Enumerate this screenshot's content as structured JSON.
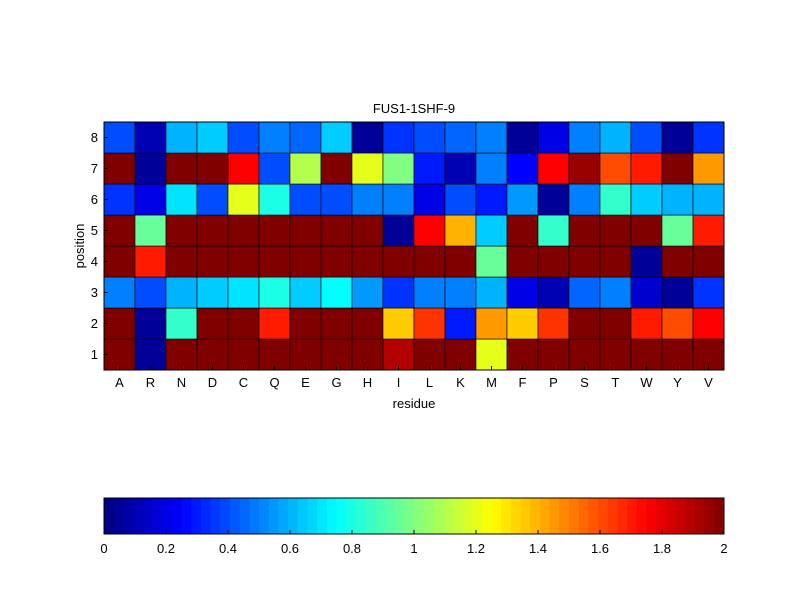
{
  "chart_data": {
    "type": "heatmap",
    "title": "FUS1-1SHF-9",
    "xlabel": "residue",
    "ylabel": "position",
    "x_categories": [
      "A",
      "R",
      "N",
      "D",
      "C",
      "Q",
      "E",
      "G",
      "H",
      "I",
      "L",
      "K",
      "M",
      "F",
      "P",
      "S",
      "T",
      "W",
      "Y",
      "V"
    ],
    "y_categories": [
      "1",
      "2",
      "3",
      "4",
      "5",
      "6",
      "7",
      "8"
    ],
    "values": [
      [
        2.0,
        0.05,
        2.0,
        2.0,
        2.0,
        2.0,
        2.0,
        2.0,
        2.0,
        1.9,
        2.0,
        2.0,
        1.2,
        2.0,
        2.0,
        2.0,
        2.0,
        2.0,
        2.0,
        2.0
      ],
      [
        2.0,
        0.05,
        0.85,
        2.0,
        2.0,
        1.7,
        2.0,
        2.0,
        2.0,
        1.35,
        1.65,
        0.3,
        1.45,
        1.35,
        1.65,
        2.0,
        2.0,
        1.7,
        1.6,
        1.75
      ],
      [
        0.5,
        0.4,
        0.6,
        0.65,
        0.7,
        0.8,
        0.65,
        0.75,
        0.55,
        0.35,
        0.5,
        0.5,
        0.6,
        0.2,
        0.1,
        0.45,
        0.5,
        0.15,
        0.05,
        0.35
      ],
      [
        2.0,
        1.7,
        2.0,
        2.0,
        2.0,
        2.0,
        2.0,
        2.0,
        2.0,
        2.0,
        2.0,
        2.0,
        0.95,
        2.0,
        2.0,
        2.0,
        2.0,
        0.05,
        2.0,
        2.0
      ],
      [
        2.0,
        0.95,
        2.0,
        2.0,
        2.0,
        2.0,
        2.0,
        2.0,
        2.0,
        0.05,
        1.75,
        1.4,
        0.65,
        2.0,
        0.85,
        2.0,
        2.0,
        2.0,
        0.95,
        1.7
      ],
      [
        0.35,
        0.2,
        0.7,
        0.4,
        1.2,
        0.8,
        0.4,
        0.4,
        0.5,
        0.5,
        0.2,
        0.4,
        0.3,
        0.55,
        0.05,
        0.5,
        0.85,
        0.65,
        0.6,
        0.6
      ],
      [
        2.0,
        0.05,
        2.0,
        2.0,
        1.75,
        0.4,
        1.1,
        2.0,
        1.2,
        1.0,
        0.3,
        0.1,
        0.5,
        0.25,
        1.75,
        1.95,
        1.6,
        1.7,
        2.0,
        1.45
      ],
      [
        0.4,
        0.1,
        0.6,
        0.65,
        0.4,
        0.5,
        0.45,
        0.65,
        0.05,
        0.35,
        0.4,
        0.45,
        0.5,
        0.05,
        0.2,
        0.5,
        0.6,
        0.4,
        0.05,
        0.35
      ]
    ],
    "colormap": "jet",
    "clim": [
      0,
      2
    ],
    "colorbar": {
      "orientation": "horizontal",
      "placement": "bottom",
      "ticks": [
        "0",
        "0.2",
        "0.4",
        "0.6",
        "0.8",
        "1",
        "1.2",
        "1.4",
        "1.6",
        "1.8",
        "2"
      ]
    },
    "grid": false
  }
}
